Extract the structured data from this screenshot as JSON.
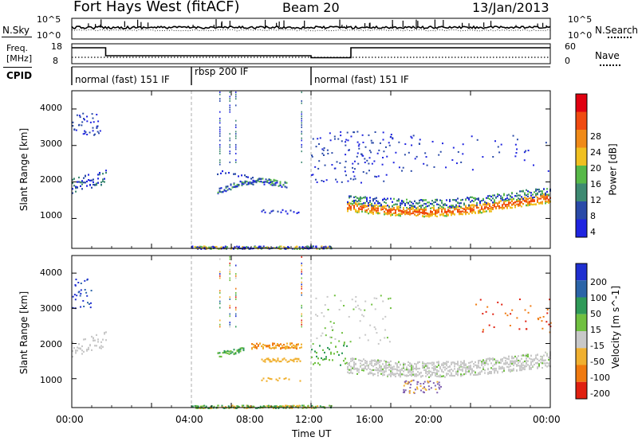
{
  "header": {
    "station": "Fort Hays West (fitACF)",
    "beam": "Beam 20",
    "date": "13/Jan/2013"
  },
  "noise_panel": {
    "left_label": "N.Sky",
    "left_ticks": [
      "10^5",
      "10^0"
    ],
    "right_label": "N.Search",
    "right_ticks": [
      "10^5",
      "10^0"
    ]
  },
  "freq_panel": {
    "left_label_1": "Freq.",
    "left_label_2": "[MHz]",
    "left_ticks": [
      "18",
      "8"
    ],
    "right_label": "Nave",
    "right_ticks": [
      "60",
      "0"
    ]
  },
  "cpid_panel": {
    "label": "CPID",
    "segments": [
      "normal (fast) 151 IF",
      "rbsp 200 IF",
      "normal (fast) 151 IF"
    ]
  },
  "x_axis": {
    "ticks": [
      "00:00",
      "04:00",
      "08:00",
      "12:00",
      "16:00",
      "20:00",
      "00:00"
    ],
    "label": "Time UT"
  },
  "power_panel": {
    "ylabel": "Slant Range [km]",
    "yticks": [
      "1000",
      "2000",
      "3000",
      "4000"
    ],
    "colorbar_label": "Power [dB]",
    "colorbar_ticks": [
      "4",
      "8",
      "12",
      "16",
      "20",
      "24",
      "28"
    ],
    "colors": [
      "#1f24e0",
      "#2a4aa8",
      "#3e8a72",
      "#57b948",
      "#f0c020",
      "#f08a18",
      "#f04a10",
      "#e00010"
    ]
  },
  "velocity_panel": {
    "ylabel": "Slant Range [km]",
    "yticks": [
      "1000",
      "2000",
      "3000",
      "4000"
    ],
    "colorbar_label": "Velocity [m s^-1]",
    "colorbar_ticks": [
      "200",
      "100",
      "50",
      "15",
      "-15",
      "-50",
      "-100",
      "-200"
    ],
    "colors": [
      "#1f2fd0",
      "#2b64a8",
      "#2f9a58",
      "#70c040",
      "#c8c8c8",
      "#f0b030",
      "#f07a10",
      "#e02010"
    ]
  },
  "chart_data": [
    {
      "type": "heatmap",
      "title": "",
      "xlabel": "Time UT",
      "ylabel": "Slant Range [km]",
      "xlim_hours": [
        0,
        24
      ],
      "ylim": [
        180,
        4500
      ],
      "colorbar": "Power [dB]",
      "features": [
        {
          "t_start": 0.0,
          "t_end": 1.7,
          "range_center": 2100,
          "value": 8
        },
        {
          "t_start": 7.3,
          "t_end": 10.8,
          "range_center": 1850,
          "value": 10
        },
        {
          "t_start": 13.8,
          "t_end": 24.0,
          "range_center": 1350,
          "value": 22
        },
        {
          "t_start": 13.8,
          "t_end": 24.0,
          "range_center": 1550,
          "value": 12
        }
      ]
    },
    {
      "type": "heatmap",
      "title": "",
      "xlabel": "Time UT",
      "ylabel": "Slant Range [km]",
      "xlim_hours": [
        0,
        24
      ],
      "ylim": [
        180,
        4500
      ],
      "colorbar": "Velocity [m s^-1]",
      "features": [
        {
          "t_start": 0.0,
          "t_end": 1.7,
          "range_center": 2050,
          "value": 0
        },
        {
          "t_start": 7.3,
          "t_end": 8.6,
          "range_center": 1800,
          "value": 40
        },
        {
          "t_start": 9.0,
          "t_end": 11.5,
          "range_center": 1950,
          "value": -50
        },
        {
          "t_start": 13.8,
          "t_end": 24.0,
          "range_center": 1400,
          "value": 0
        }
      ]
    },
    {
      "type": "line",
      "title": "",
      "xlabel": "",
      "ylabel": "Freq. [MHz]",
      "xlim_hours": [
        0,
        24
      ],
      "ylim": [
        8,
        18
      ],
      "series": [
        {
          "x": [
            0,
            1.7,
            1.7,
            12.0,
            12.0,
            14.0,
            14.0,
            24.0
          ],
          "values": [
            16,
            16,
            12,
            12,
            11,
            11,
            16,
            16
          ]
        }
      ]
    }
  ]
}
